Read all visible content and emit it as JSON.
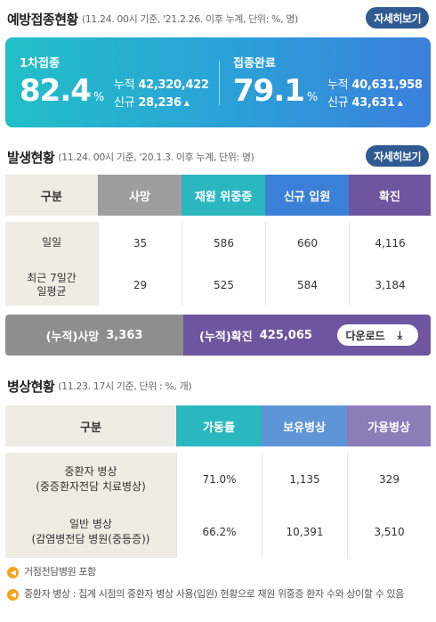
{
  "vaccination": {
    "title": "예방접종현황",
    "subtitle": "(11.24. 00시 기준, '21.2.26. 이후 누계, 단위: %, 명)",
    "more_label": "자세히보기",
    "first": {
      "label": "1차접종",
      "percent": "82.4",
      "unit": "%",
      "cum_label": "누적",
      "cum_value": "42,320,422",
      "new_label": "신규",
      "new_value": "28,236"
    },
    "complete": {
      "label": "접종완료",
      "percent": "79.1",
      "unit": "%",
      "cum_label": "누적",
      "cum_value": "40,631,958",
      "new_label": "신규",
      "new_value": "43,631"
    },
    "colors": {
      "gradient_start": "#22bfc7",
      "gradient_end": "#3b7fdc"
    }
  },
  "occurrence": {
    "title": "발생현황",
    "subtitle": "(11.24. 00시 기준, '20.1.3. 이후 누계, 단위: 명)",
    "more_label": "자세히보기",
    "headers": [
      "구분",
      "사망",
      "재원 위중증",
      "신규 입원",
      "확진"
    ],
    "header_colors": [
      "#efece4",
      "#9e9e9e",
      "#2bb7c0",
      "#3a80d6",
      "#6e55a0"
    ],
    "rows": [
      {
        "label": "일일",
        "values": [
          "35",
          "586",
          "660",
          "4,116"
        ]
      },
      {
        "label": "최근 7일간 일평균",
        "values": [
          "29",
          "525",
          "584",
          "3,184"
        ]
      }
    ],
    "cumulative": {
      "death_label": "(누적)사망",
      "death_value": "3,363",
      "confirmed_label": "(누적)확진",
      "confirmed_value": "425,065",
      "download_label": "다운로드"
    }
  },
  "beds": {
    "title": "병상현황",
    "subtitle": "(11.23. 17시 기준, 단위 : %, 개)",
    "headers": [
      "구분",
      "가동률",
      "보유병상",
      "가용병상"
    ],
    "header_colors": [
      "#efece4",
      "#2bb7c0",
      "#5e95d6",
      "#8c7cb8"
    ],
    "rows": [
      {
        "label_line1": "중환자 병상",
        "label_line2": "(중증환자전담 치료병상)",
        "values": [
          "71.0%",
          "1,135",
          "329"
        ]
      },
      {
        "label_line1": "일반 병상",
        "label_line2": "(감염병전담 병원(중등증))",
        "values": [
          "66.2%",
          "10,391",
          "3,510"
        ]
      }
    ]
  },
  "notes": [
    "거점전담병원 포함",
    "중환자 병상 : 집계 시점의 중환자 병상 사용(입원) 현황으로 재원 위중증 환자 수와 상이할 수 있음"
  ]
}
